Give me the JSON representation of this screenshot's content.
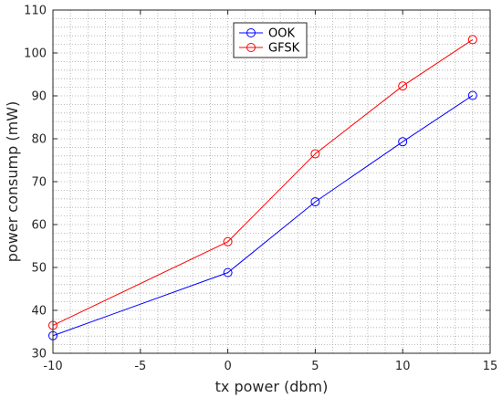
{
  "chart_data": {
    "type": "line",
    "xlabel": "tx power (dbm)",
    "ylabel": "power consump (mW)",
    "xlim": [
      -10,
      15
    ],
    "ylim": [
      30,
      110
    ],
    "xticks": [
      -10,
      -5,
      0,
      5,
      10,
      15
    ],
    "yticks": [
      30,
      40,
      50,
      60,
      70,
      80,
      90,
      100,
      110
    ],
    "grid": "minor-dotted",
    "legend_position": "top-center",
    "x": [
      -10,
      0,
      5,
      10,
      14
    ],
    "series": [
      {
        "name": "OOK",
        "color": "#0000ff",
        "marker": "circle",
        "values": [
          34.1,
          48.8,
          65.3,
          79.3,
          90.1
        ]
      },
      {
        "name": "GFSK",
        "color": "#ff0000",
        "marker": "circle",
        "values": [
          36.5,
          56.0,
          76.5,
          92.3,
          103.1
        ]
      }
    ]
  }
}
